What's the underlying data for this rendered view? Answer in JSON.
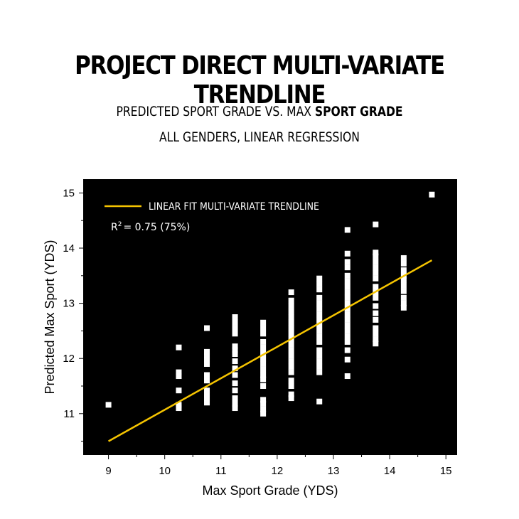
{
  "header": {
    "title": "PROJECT DIRECT MULTI-VARIATE TRENDLINE",
    "subtitle_1_prefix": "PREDICTED SPORT GRADE VS. MAX ",
    "subtitle_1_bold": "SPORT GRADE",
    "subtitle_2": "ALL GENDERS, LINEAR REGRESSION"
  },
  "chart_data": {
    "type": "scatter",
    "xlabel": "Max Sport Grade (YDS)",
    "ylabel": "Predicted Max Sport (YDS)",
    "xlim": [
      8.55,
      15.2
    ],
    "ylim": [
      10.25,
      15.25
    ],
    "xticks": [
      9,
      10,
      11,
      12,
      13,
      14,
      15
    ],
    "yticks": [
      11,
      12,
      13,
      14,
      15
    ],
    "grid": false,
    "legend_position": "top-left",
    "legend_label": "LINEAR FIT MULTI-VARIATE TRENDLINE",
    "r2_prefix": "R",
    "r2_superscript": "2",
    "r2_value": "= 0.75 (75%)",
    "colors": {
      "background": "#000000",
      "points": "#ffffff",
      "fit_line": "#f5c400"
    },
    "fit_line": {
      "x": [
        9.0,
        14.75
      ],
      "y": [
        10.5,
        13.78
      ]
    },
    "points": [
      {
        "x": 9.0,
        "y": [
          11.16
        ]
      },
      {
        "x": 10.25,
        "y": [
          11.1,
          11.16,
          11.42,
          11.68,
          11.75,
          12.2
        ]
      },
      {
        "x": 10.75,
        "y": [
          11.2,
          11.28,
          11.35,
          11.42,
          11.6,
          11.7,
          11.9,
          11.98,
          12.05,
          12.12,
          12.55
        ]
      },
      {
        "x": 11.25,
        "y": [
          11.1,
          11.18,
          11.28,
          11.42,
          11.55,
          11.7,
          11.82,
          11.95,
          12.08,
          12.15,
          12.22,
          12.45,
          12.55,
          12.65,
          12.75
        ]
      },
      {
        "x": 11.75,
        "y": [
          11.0,
          11.08,
          11.18,
          11.25,
          11.5,
          11.62,
          11.7,
          11.8,
          11.9,
          12.0,
          12.1,
          12.2,
          12.3,
          12.45,
          12.55,
          12.65
        ]
      },
      {
        "x": 12.25,
        "y": [
          11.28,
          11.35,
          11.5,
          11.6,
          11.75,
          11.85,
          11.95,
          12.05,
          12.15,
          12.25,
          12.35,
          12.45,
          12.55,
          12.65,
          12.75,
          12.85,
          12.95,
          13.05,
          13.2
        ]
      },
      {
        "x": 12.75,
        "y": [
          11.22,
          11.75,
          11.85,
          11.95,
          12.05,
          12.15,
          12.3,
          12.4,
          12.5,
          12.6,
          12.7,
          12.8,
          12.9,
          13.0,
          13.1,
          13.25,
          13.35,
          13.45
        ]
      },
      {
        "x": 13.25,
        "y": [
          11.68,
          11.98,
          12.15,
          12.3,
          12.4,
          12.5,
          12.6,
          12.7,
          12.8,
          12.9,
          13.0,
          13.1,
          13.2,
          13.3,
          13.4,
          13.5,
          13.65,
          13.75,
          13.9,
          14.33
        ]
      },
      {
        "x": 13.75,
        "y": [
          12.27,
          12.35,
          12.45,
          12.55,
          12.7,
          12.82,
          12.95,
          13.1,
          13.2,
          13.3,
          13.45,
          13.55,
          13.65,
          13.75,
          13.85,
          13.92,
          14.43
        ]
      },
      {
        "x": 14.25,
        "y": [
          12.92,
          13.0,
          13.1,
          13.22,
          13.32,
          13.42,
          13.5,
          13.6,
          13.72,
          13.82
        ]
      },
      {
        "x": 14.75,
        "y": [
          14.97
        ]
      }
    ]
  }
}
